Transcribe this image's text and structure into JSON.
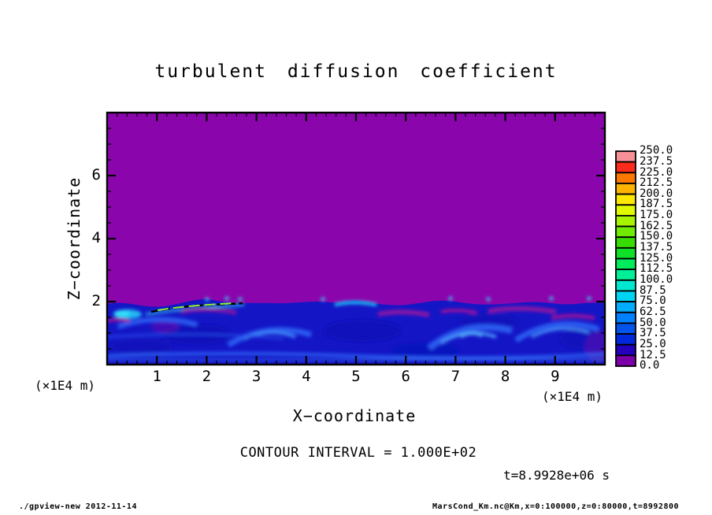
{
  "title": "turbulent diffusion coefficient",
  "annotations": {
    "contour_interval_text": "CONTOUR INTERVAL = 1.000E+02",
    "time_text": "t=8.9928e+06 s"
  },
  "footer": {
    "left": "./gpview-new  2012-11-14",
    "right": "MarsCond_Km.nc@Km,x=0:100000,z=0:80000,t=8992800"
  },
  "chart_data": {
    "type": "heatmap",
    "title": "turbulent diffusion coefficient",
    "xlabel": "X−coordinate",
    "ylabel": "Z−coordinate",
    "x_unit": "(×1E4 m)",
    "y_unit": "(×1E4 m)",
    "xlim": [
      0,
      10
    ],
    "ylim": [
      0,
      8
    ],
    "x_ticks": [
      1,
      2,
      3,
      4,
      5,
      6,
      7,
      8,
      9
    ],
    "y_ticks": [
      2,
      4,
      6
    ],
    "x_minor_step": 0.2,
    "y_minor_step": 0.5,
    "contour_interval": 100.0,
    "time_seconds": 8992800,
    "field_summary": {
      "upper_region": "uniform value ~0 (purple) for z above ~2e4 m",
      "lower_region": "turbulent boundary layer below z ~2e4 m, mostly 12.5–100 (blue/cyan swirls) with purple wisps",
      "contour_feature": "single black dashed contour (value 100) with green streak near x≈1–2.7e4 m, z≈1.9e4 m"
    },
    "colorbar": {
      "min": 0.0,
      "max": 250.0,
      "step": 12.5,
      "labels_top_to_bottom": [
        "250.0",
        "237.5",
        "225.0",
        "212.5",
        "200.0",
        "187.5",
        "175.0",
        "162.5",
        "150.0",
        "137.5",
        "125.0",
        "112.5",
        "100.0",
        "87.5",
        "75.0",
        "62.5",
        "50.0",
        "37.5",
        "25.0",
        "12.5",
        "0.0"
      ],
      "colors_bottom_to_top": [
        "#7C00A8",
        "#2400BC",
        "#0028DC",
        "#0054EC",
        "#0080FC",
        "#00ACFC",
        "#00D4F4",
        "#00E8D0",
        "#00F098",
        "#00EC5C",
        "#10E028",
        "#38DC00",
        "#70EC00",
        "#A8F400",
        "#E0F800",
        "#FCE800",
        "#FCB400",
        "#FC7800",
        "#FC2C1C",
        "#F89098"
      ]
    },
    "accent_colors": {
      "background_value_color": "#8A06AC",
      "frame_color": "#000000"
    }
  }
}
